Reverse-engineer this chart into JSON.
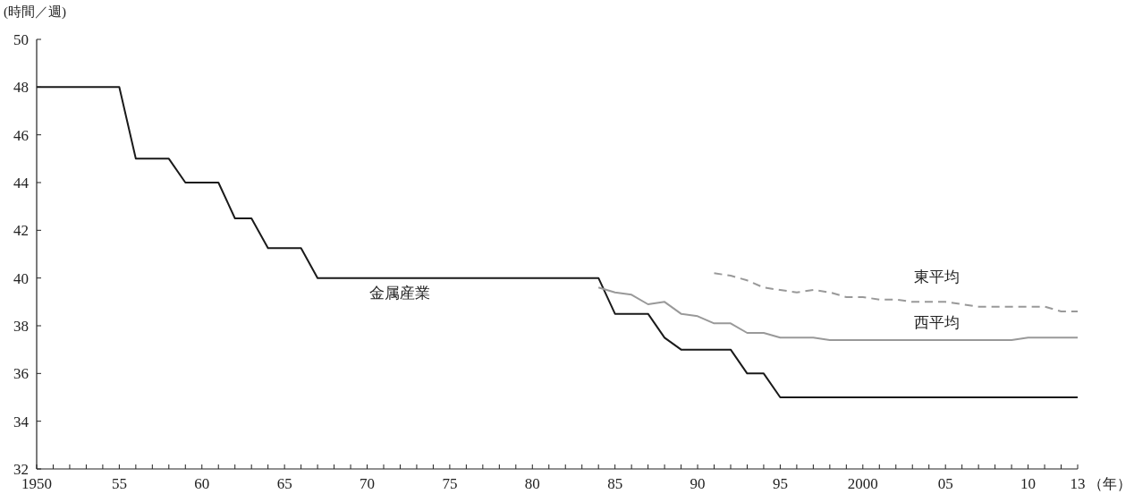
{
  "chart_data": {
    "type": "line",
    "ylabel": "(時間／週)",
    "xlabel": "（年）",
    "xlim": [
      1950,
      2013
    ],
    "ylim": [
      32,
      50
    ],
    "yticks": [
      32,
      34,
      36,
      38,
      40,
      42,
      44,
      46,
      48,
      50
    ],
    "xticks": [
      {
        "value": 1950,
        "label": "1950"
      },
      {
        "value": 1951,
        "label": null
      },
      {
        "value": 1952,
        "label": null
      },
      {
        "value": 1953,
        "label": null
      },
      {
        "value": 1954,
        "label": null
      },
      {
        "value": 1955,
        "label": "55"
      },
      {
        "value": 1956,
        "label": null
      },
      {
        "value": 1957,
        "label": null
      },
      {
        "value": 1958,
        "label": null
      },
      {
        "value": 1959,
        "label": null
      },
      {
        "value": 1960,
        "label": "60"
      },
      {
        "value": 1961,
        "label": null
      },
      {
        "value": 1962,
        "label": null
      },
      {
        "value": 1963,
        "label": null
      },
      {
        "value": 1964,
        "label": null
      },
      {
        "value": 1965,
        "label": "65"
      },
      {
        "value": 1966,
        "label": null
      },
      {
        "value": 1967,
        "label": null
      },
      {
        "value": 1968,
        "label": null
      },
      {
        "value": 1969,
        "label": null
      },
      {
        "value": 1970,
        "label": "70"
      },
      {
        "value": 1971,
        "label": null
      },
      {
        "value": 1972,
        "label": null
      },
      {
        "value": 1973,
        "label": null
      },
      {
        "value": 1974,
        "label": null
      },
      {
        "value": 1975,
        "label": "75"
      },
      {
        "value": 1976,
        "label": null
      },
      {
        "value": 1977,
        "label": null
      },
      {
        "value": 1978,
        "label": null
      },
      {
        "value": 1979,
        "label": null
      },
      {
        "value": 1980,
        "label": "80"
      },
      {
        "value": 1981,
        "label": null
      },
      {
        "value": 1982,
        "label": null
      },
      {
        "value": 1983,
        "label": null
      },
      {
        "value": 1984,
        "label": null
      },
      {
        "value": 1985,
        "label": "85"
      },
      {
        "value": 1986,
        "label": null
      },
      {
        "value": 1987,
        "label": null
      },
      {
        "value": 1988,
        "label": null
      },
      {
        "value": 1989,
        "label": null
      },
      {
        "value": 1990,
        "label": "90"
      },
      {
        "value": 1991,
        "label": null
      },
      {
        "value": 1992,
        "label": null
      },
      {
        "value": 1993,
        "label": null
      },
      {
        "value": 1994,
        "label": null
      },
      {
        "value": 1995,
        "label": "95"
      },
      {
        "value": 1996,
        "label": null
      },
      {
        "value": 1997,
        "label": null
      },
      {
        "value": 1998,
        "label": null
      },
      {
        "value": 1999,
        "label": null
      },
      {
        "value": 2000,
        "label": "2000"
      },
      {
        "value": 2001,
        "label": null
      },
      {
        "value": 2002,
        "label": null
      },
      {
        "value": 2003,
        "label": null
      },
      {
        "value": 2004,
        "label": null
      },
      {
        "value": 2005,
        "label": "05"
      },
      {
        "value": 2006,
        "label": null
      },
      {
        "value": 2007,
        "label": null
      },
      {
        "value": 2008,
        "label": null
      },
      {
        "value": 2009,
        "label": null
      },
      {
        "value": 2010,
        "label": "10"
      },
      {
        "value": 2011,
        "label": null
      },
      {
        "value": 2012,
        "label": null
      },
      {
        "value": 2013,
        "label": "13"
      }
    ],
    "series": [
      {
        "name": "金属産業",
        "color": "#1a1a1a",
        "line_style": "solid",
        "x": [
          1950,
          1955,
          1956,
          1958,
          1959,
          1961,
          1962,
          1963,
          1964,
          1966,
          1967,
          1984,
          1985,
          1987,
          1988,
          1989,
          1992,
          1993,
          1994,
          1995,
          2013
        ],
        "values": [
          48,
          48,
          45,
          45,
          44,
          44,
          42.5,
          42.5,
          41.25,
          41.25,
          40,
          40,
          38.5,
          38.5,
          37.5,
          37,
          37,
          36,
          36,
          35,
          35
        ]
      },
      {
        "name": "西平均",
        "color": "#999999",
        "line_style": "solid",
        "x": [
          1984,
          1985,
          1986,
          1987,
          1988,
          1989,
          1990,
          1991,
          1992,
          1993,
          1994,
          1995,
          1996,
          1997,
          1998,
          2009,
          2010,
          2013
        ],
        "values": [
          39.6,
          39.4,
          39.3,
          38.9,
          39.0,
          38.5,
          38.4,
          38.1,
          38.1,
          37.7,
          37.7,
          37.5,
          37.5,
          37.5,
          37.4,
          37.4,
          37.5,
          37.5
        ]
      },
      {
        "name": "東平均",
        "color": "#999999",
        "line_style": "dashed",
        "x": [
          1991,
          1992,
          1993,
          1994,
          1995,
          1996,
          1997,
          1998,
          1999,
          2000,
          2001,
          2002,
          2003,
          2004,
          2005,
          2006,
          2007,
          2008,
          2009,
          2010,
          2011,
          2012,
          2013
        ],
        "values": [
          40.2,
          40.1,
          39.9,
          39.6,
          39.5,
          39.4,
          39.5,
          39.4,
          39.2,
          39.2,
          39.1,
          39.1,
          39.0,
          39.0,
          39.0,
          38.9,
          38.8,
          38.8,
          38.8,
          38.8,
          38.8,
          38.6,
          38.6
        ]
      }
    ]
  }
}
